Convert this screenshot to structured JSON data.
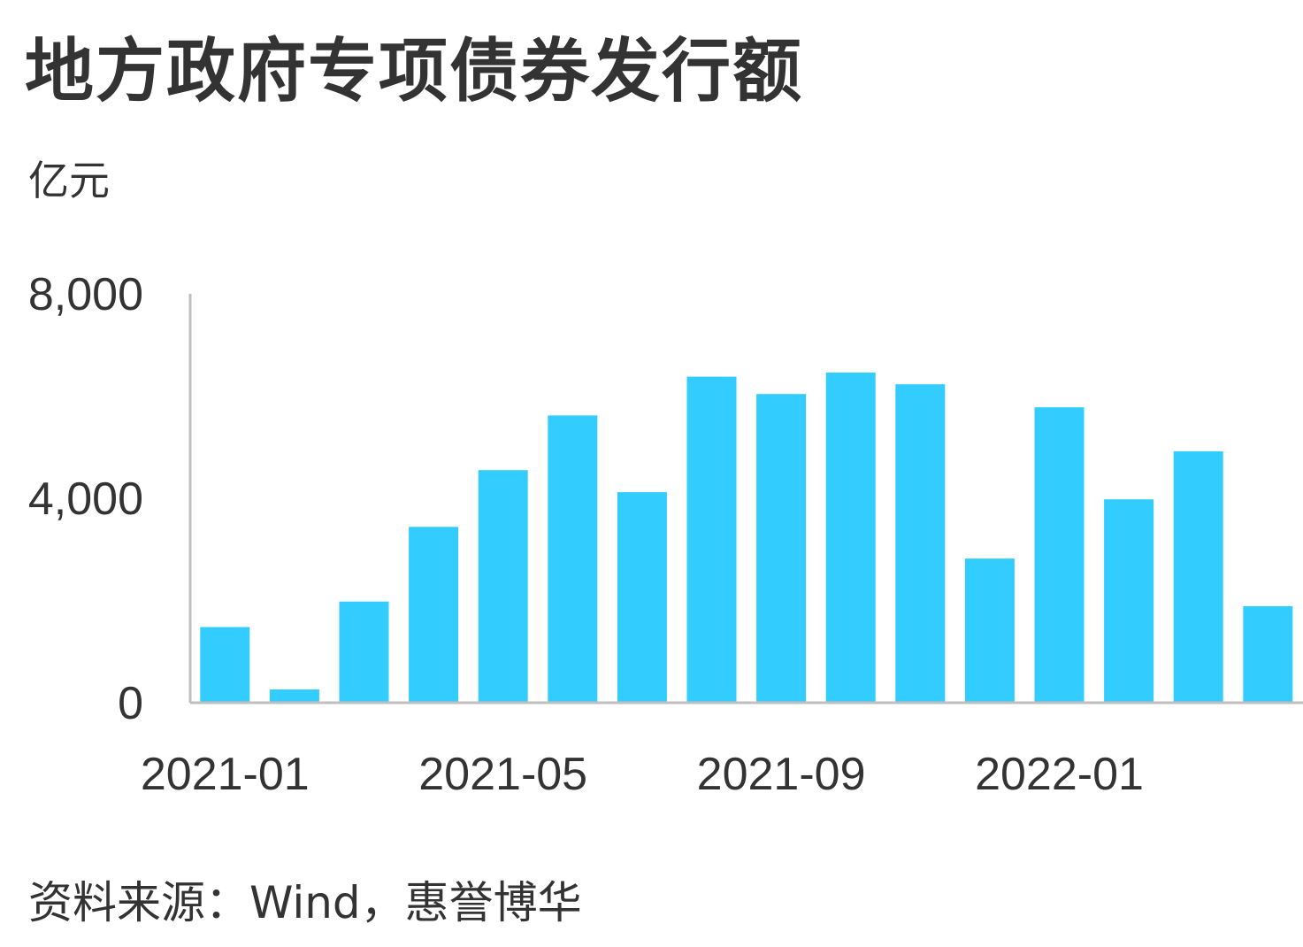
{
  "title": "地方政府专项债券发行额",
  "unit_label": "亿元",
  "source": "资料来源：Wind，惠誉博华",
  "colors": {
    "bar": "#33CCFF",
    "axis": "#BFBFBF",
    "text": "#333333"
  },
  "chart_data": {
    "type": "bar",
    "categories": [
      "2021-01",
      "2021-02",
      "2021-03",
      "2021-04",
      "2021-05",
      "2021-06",
      "2021-07",
      "2021-08",
      "2021-09",
      "2021-10",
      "2021-11",
      "2021-12",
      "2022-01",
      "2022-02",
      "2022-03",
      "2022-04"
    ],
    "x_tick_labels": [
      "2021-01",
      "2021-05",
      "2021-09",
      "2022-01"
    ],
    "values": [
      1480,
      260,
      1980,
      3440,
      4550,
      5620,
      4120,
      6380,
      6040,
      6460,
      6230,
      2820,
      5780,
      3980,
      4920,
      1890
    ],
    "y_tick_labels": [
      "0",
      "4,000",
      "8,000"
    ],
    "y_ticks": [
      0,
      4000,
      8000
    ],
    "ylim": [
      0,
      8000
    ],
    "ylabel": "亿元",
    "grid": false,
    "legend": "none"
  }
}
